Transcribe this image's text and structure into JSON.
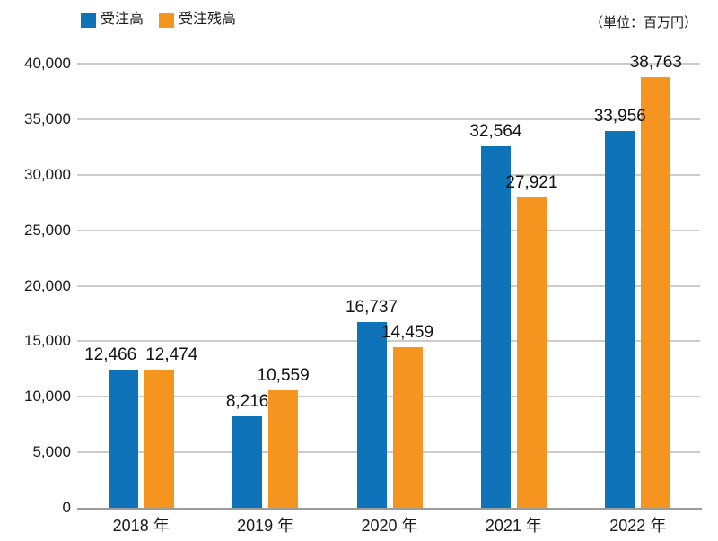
{
  "legend": {
    "items": [
      {
        "label": "受注高",
        "color": "#0e73b9"
      },
      {
        "label": "受注残高",
        "color": "#f5941e"
      }
    ]
  },
  "unit_note": "（単位：百万円）",
  "chart_data": {
    "type": "bar",
    "categories": [
      "2018 年",
      "2019 年",
      "2020 年",
      "2021 年",
      "2022 年"
    ],
    "series": [
      {
        "name": "受注高",
        "color": "#0e73b9",
        "values": [
          12466,
          8216,
          16737,
          32564,
          33956
        ]
      },
      {
        "name": "受注残高",
        "color": "#f5941e",
        "values": [
          12474,
          10559,
          14459,
          27921,
          38763
        ]
      }
    ],
    "value_labels": [
      [
        "12,466",
        "8,216",
        "16,737",
        "32,564",
        "33,956"
      ],
      [
        "12,474",
        "10,559",
        "14,459",
        "27,921",
        "38,763"
      ]
    ],
    "title": "",
    "xlabel": "",
    "ylabel": "",
    "ylim": [
      0,
      40000
    ],
    "ytick_step": 5000,
    "ytick_labels": [
      "0",
      "5,000",
      "10,000",
      "15,000",
      "20,000",
      "25,000",
      "30,000",
      "35,000",
      "40,000"
    ],
    "grid": "horizontal",
    "legend_position": "top-left",
    "unit_note": "（単位：百万円）"
  },
  "colors": {
    "background": "#ffffff",
    "grid": "#cccccc",
    "axis": "#9c9c9c",
    "text": "#1a1a1a"
  }
}
